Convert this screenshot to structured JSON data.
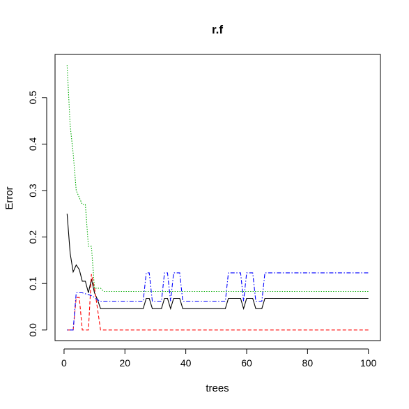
{
  "chart_data": {
    "type": "line",
    "title": "r.f",
    "xlabel": "trees",
    "ylabel": "Error",
    "xlim": [
      -2.96,
      103.96
    ],
    "ylim": [
      -0.0228,
      0.5928
    ],
    "x_ticks": [
      "0",
      "20",
      "40",
      "60",
      "80",
      "100"
    ],
    "y_ticks": [
      "0.0",
      "0.1",
      "0.2",
      "0.3",
      "0.4",
      "0.5"
    ],
    "grid": false,
    "legend": "none",
    "series": [
      {
        "color": "#000000",
        "dash": "solid",
        "points": [
          [
            1,
            0.25
          ],
          [
            2,
            0.165
          ],
          [
            3,
            0.125
          ],
          [
            4,
            0.14
          ],
          [
            5,
            0.13
          ],
          [
            6,
            0.105
          ],
          [
            7,
            0.105
          ],
          [
            8,
            0.08
          ],
          [
            9,
            0.11
          ],
          [
            10,
            0.08
          ],
          [
            11,
            0.065
          ],
          [
            12,
            0.046
          ],
          [
            26,
            0.046
          ],
          [
            27,
            0.068
          ],
          [
            28,
            0.068
          ],
          [
            29,
            0.046
          ],
          [
            32,
            0.046
          ],
          [
            33,
            0.068
          ],
          [
            34,
            0.068
          ],
          [
            35,
            0.046
          ],
          [
            36,
            0.068
          ],
          [
            38,
            0.068
          ],
          [
            39,
            0.046
          ],
          [
            53,
            0.046
          ],
          [
            54,
            0.068
          ],
          [
            58,
            0.068
          ],
          [
            59,
            0.046
          ],
          [
            60,
            0.068
          ],
          [
            62,
            0.068
          ],
          [
            63,
            0.046
          ],
          [
            65,
            0.046
          ],
          [
            66,
            0.068
          ],
          [
            100,
            0.068
          ]
        ]
      },
      {
        "color": "#ff0000",
        "dash": "dashed",
        "points": [
          [
            1,
            0.0
          ],
          [
            3,
            0.0
          ],
          [
            4,
            0.07
          ],
          [
            5,
            0.07
          ],
          [
            6,
            0.0
          ],
          [
            7,
            0.0
          ],
          [
            8,
            0.0
          ],
          [
            9,
            0.12
          ],
          [
            10,
            0.09
          ],
          [
            11,
            0.045
          ],
          [
            12,
            0.0
          ],
          [
            100,
            0.0
          ]
        ]
      },
      {
        "color": "#00aa00",
        "dash": "dotted",
        "points": [
          [
            1,
            0.57
          ],
          [
            2,
            0.44
          ],
          [
            3,
            0.38
          ],
          [
            4,
            0.3
          ],
          [
            5,
            0.285
          ],
          [
            6,
            0.27
          ],
          [
            7,
            0.27
          ],
          [
            8,
            0.18
          ],
          [
            9,
            0.18
          ],
          [
            10,
            0.09
          ],
          [
            11,
            0.09
          ],
          [
            12,
            0.09
          ],
          [
            13,
            0.083
          ],
          [
            100,
            0.083
          ]
        ]
      },
      {
        "color": "#0000ff",
        "dash": "dotdash",
        "points": [
          [
            1,
            0.0
          ],
          [
            3,
            0.0
          ],
          [
            4,
            0.08
          ],
          [
            5,
            0.08
          ],
          [
            6,
            0.08
          ],
          [
            7,
            0.078
          ],
          [
            8,
            0.076
          ],
          [
            9,
            0.074
          ],
          [
            10,
            0.07
          ],
          [
            11,
            0.065
          ],
          [
            12,
            0.062
          ],
          [
            26,
            0.062
          ],
          [
            27,
            0.123
          ],
          [
            28,
            0.123
          ],
          [
            29,
            0.062
          ],
          [
            32,
            0.062
          ],
          [
            33,
            0.123
          ],
          [
            34,
            0.123
          ],
          [
            35,
            0.062
          ],
          [
            36,
            0.123
          ],
          [
            38,
            0.123
          ],
          [
            39,
            0.062
          ],
          [
            53,
            0.062
          ],
          [
            54,
            0.123
          ],
          [
            58,
            0.123
          ],
          [
            59,
            0.062
          ],
          [
            60,
            0.123
          ],
          [
            62,
            0.123
          ],
          [
            63,
            0.062
          ],
          [
            65,
            0.062
          ],
          [
            66,
            0.123
          ],
          [
            100,
            0.123
          ]
        ]
      }
    ]
  }
}
